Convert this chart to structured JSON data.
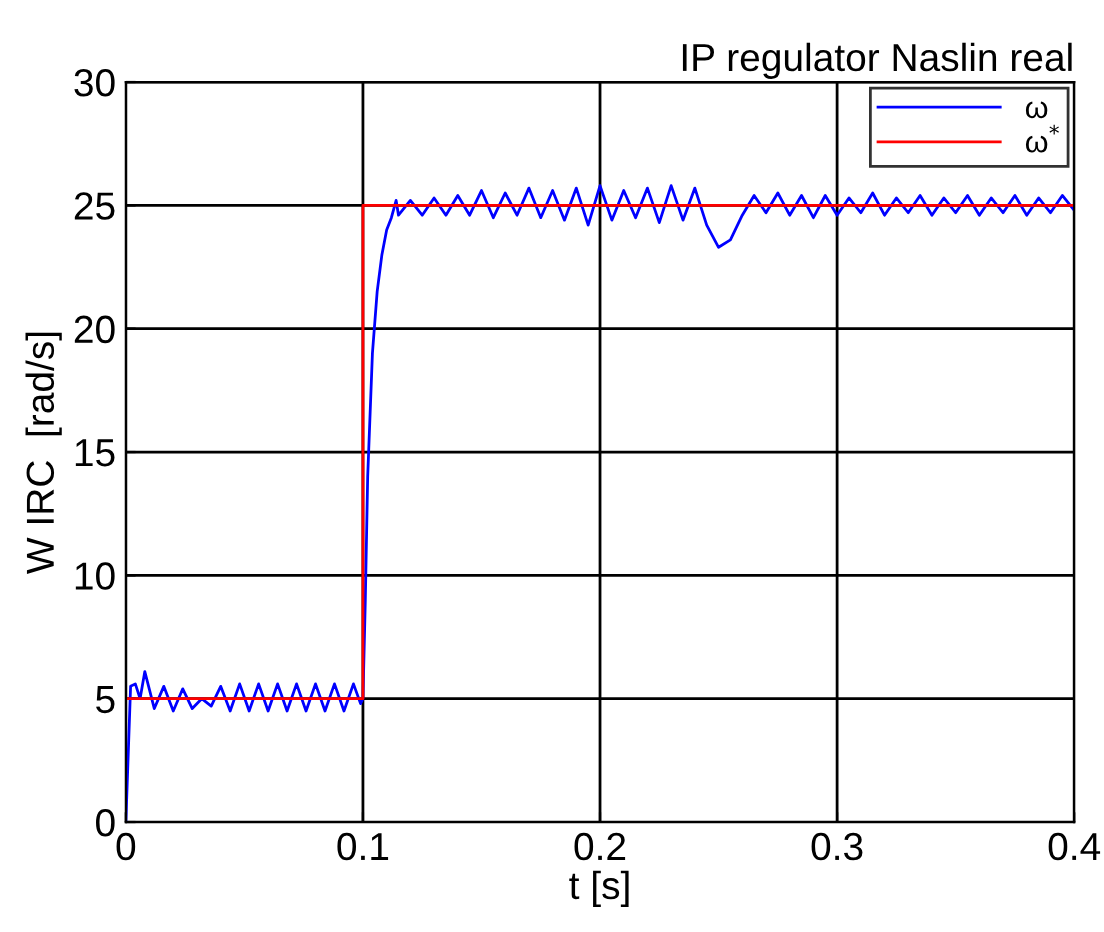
{
  "chart_data": {
    "type": "line",
    "title": "IP regulator Naslin real",
    "xlabel": "t [s]",
    "ylabel": "W IRC  [rad/s]",
    "xlim": [
      0,
      0.4
    ],
    "xticks": [
      0,
      0.1,
      0.2,
      0.3,
      0.4
    ],
    "ylim": [
      0,
      30
    ],
    "yticks": [
      0,
      5,
      10,
      15,
      20,
      25,
      30
    ],
    "grid": true,
    "legend": "top right",
    "line_style": "solid",
    "marker": "none",
    "series": [
      {
        "name": "ω",
        "color": "#0000ff",
        "x": [
          0,
          0.002,
          0.004,
          0.006,
          0.008,
          0.012,
          0.016,
          0.02,
          0.024,
          0.028,
          0.032,
          0.036,
          0.04,
          0.044,
          0.048,
          0.052,
          0.056,
          0.06,
          0.064,
          0.068,
          0.072,
          0.076,
          0.08,
          0.084,
          0.088,
          0.092,
          0.096,
          0.099,
          0.1,
          0.101,
          0.102,
          0.104,
          0.106,
          0.108,
          0.11,
          0.112,
          0.114,
          0.115,
          0.12,
          0.125,
          0.13,
          0.135,
          0.14,
          0.145,
          0.15,
          0.155,
          0.16,
          0.165,
          0.17,
          0.175,
          0.18,
          0.185,
          0.19,
          0.195,
          0.2,
          0.205,
          0.21,
          0.215,
          0.22,
          0.225,
          0.23,
          0.235,
          0.24,
          0.245,
          0.25,
          0.255,
          0.26,
          0.265,
          0.27,
          0.275,
          0.28,
          0.285,
          0.29,
          0.295,
          0.3,
          0.305,
          0.31,
          0.315,
          0.32,
          0.325,
          0.33,
          0.335,
          0.34,
          0.345,
          0.35,
          0.355,
          0.36,
          0.365,
          0.37,
          0.375,
          0.38,
          0.385,
          0.39,
          0.395,
          0.4
        ],
        "values": [
          0,
          5.5,
          5.6,
          5.0,
          6.1,
          4.6,
          5.5,
          4.5,
          5.4,
          4.6,
          5.0,
          4.7,
          5.5,
          4.5,
          5.6,
          4.5,
          5.6,
          4.5,
          5.6,
          4.5,
          5.6,
          4.5,
          5.6,
          4.5,
          5.6,
          4.5,
          5.6,
          4.8,
          5.0,
          9,
          14,
          19,
          21.5,
          23,
          24,
          24.5,
          25.2,
          24.6,
          25.2,
          24.6,
          25.3,
          24.6,
          25.4,
          24.6,
          25.6,
          24.5,
          25.5,
          24.6,
          25.7,
          24.5,
          25.6,
          24.4,
          25.7,
          24.2,
          25.8,
          24.4,
          25.6,
          24.5,
          25.7,
          24.3,
          25.8,
          24.4,
          25.7,
          24.2,
          23.3,
          23.6,
          24.6,
          25.4,
          24.7,
          25.5,
          24.6,
          25.4,
          24.5,
          25.4,
          24.6,
          25.3,
          24.7,
          25.5,
          24.6,
          25.3,
          24.7,
          25.4,
          24.6,
          25.3,
          24.7,
          25.4,
          24.6,
          25.3,
          24.7,
          25.4,
          24.6,
          25.3,
          24.7,
          25.4,
          24.8
        ]
      },
      {
        "name": "ω$^{*}$",
        "color": "#ff0000",
        "x": [
          0,
          0.1,
          0.1,
          0.4
        ],
        "values": [
          5,
          5,
          25,
          25
        ]
      }
    ]
  }
}
